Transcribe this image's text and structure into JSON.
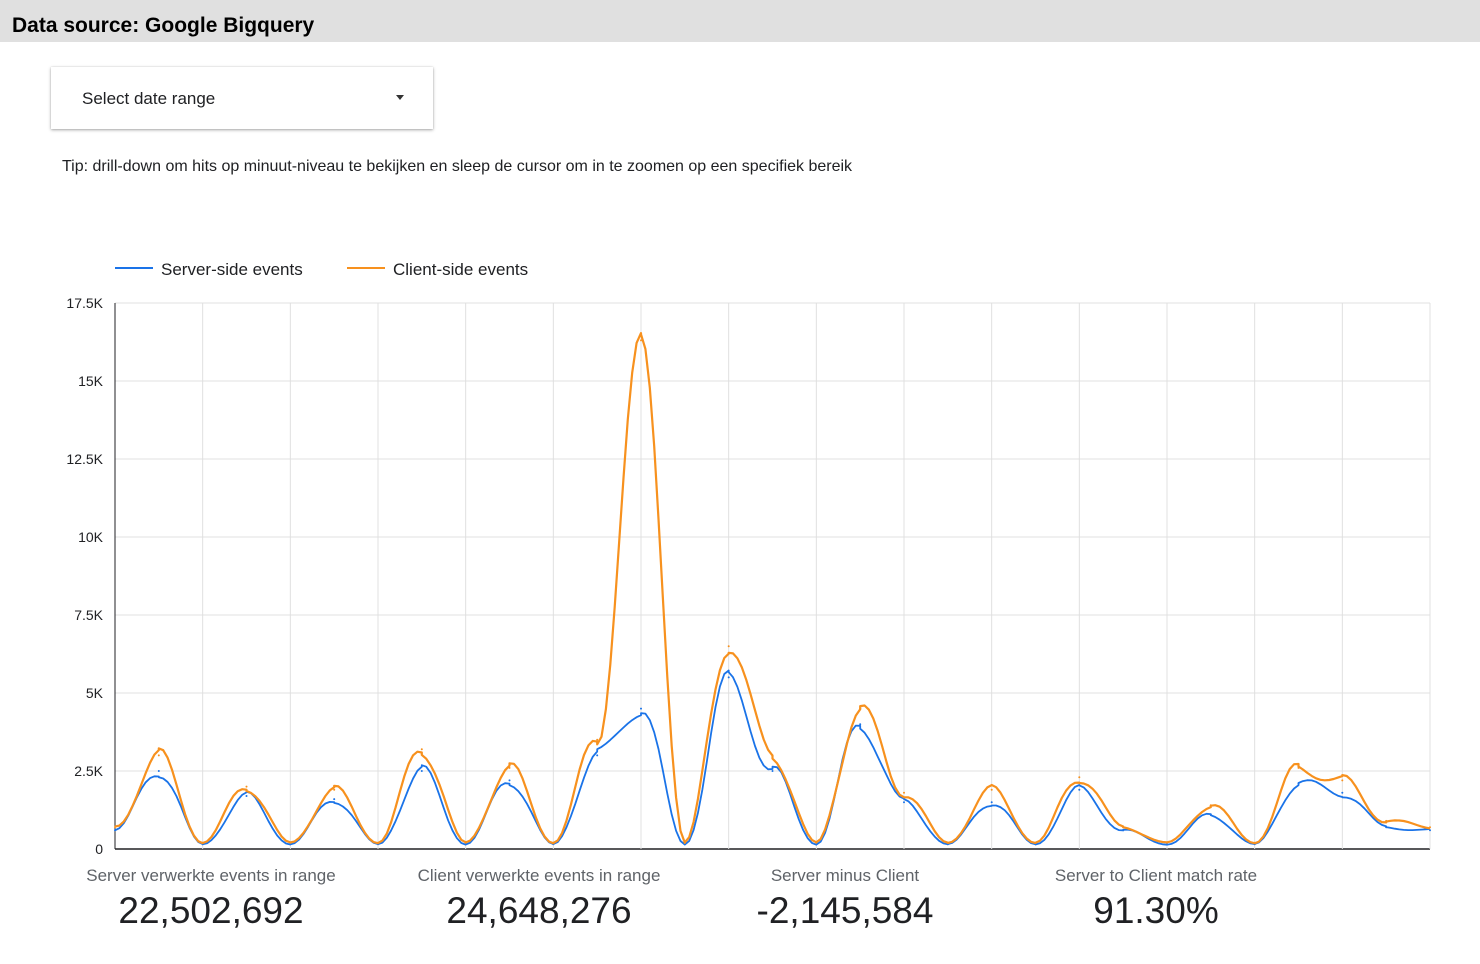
{
  "header": {
    "title": "Data source: Google Bigquery"
  },
  "date_control": {
    "label": "Select date range"
  },
  "tip": "Tip: drill-down om hits op minuut-niveau te bekijken en sleep de cursor om in te zoomen op een specifiek bereik",
  "chart_data": {
    "type": "line",
    "ylim": [
      0,
      17500
    ],
    "y_ticks": [
      {
        "value": 0,
        "label": "0"
      },
      {
        "value": 2500,
        "label": "2.5K"
      },
      {
        "value": 5000,
        "label": "5K"
      },
      {
        "value": 7500,
        "label": "7.5K"
      },
      {
        "value": 10000,
        "label": "10K"
      },
      {
        "value": 12500,
        "label": "12.5K"
      },
      {
        "value": 15000,
        "label": "15K"
      },
      {
        "value": 17500,
        "label": "17.5K"
      }
    ],
    "x_label": "",
    "y_label": "",
    "grid": true,
    "legend_position": "top-left",
    "x_day_index": [
      0,
      0.5,
      1,
      1.5,
      2,
      2.5,
      3,
      3.5,
      4,
      4.5,
      5,
      5.5,
      6,
      6.5,
      7,
      7.5,
      8,
      8.5,
      9,
      9.5,
      10,
      10.5,
      11,
      11.5,
      12,
      12.5,
      13,
      13.5,
      14,
      14.5,
      15
    ],
    "series": [
      {
        "name": "Server-side events",
        "color": "#1a73e8",
        "values": [
          600,
          2500,
          150,
          1700,
          150,
          1600,
          150,
          2500,
          150,
          2200,
          150,
          3000,
          4500,
          150,
          5500,
          2500,
          150,
          4000,
          1500,
          150,
          1500,
          150,
          1900,
          600,
          150,
          1100,
          150,
          2100,
          1800,
          700,
          600
        ]
      },
      {
        "name": "Client-side events",
        "color": "#f7911e",
        "values": [
          700,
          3000,
          200,
          2000,
          200,
          1900,
          200,
          3200,
          200,
          2600,
          200,
          3500,
          16300,
          200,
          6500,
          3000,
          200,
          4500,
          1800,
          200,
          1900,
          200,
          2300,
          700,
          200,
          1400,
          200,
          2600,
          2200,
          900,
          700
        ]
      }
    ]
  },
  "scorecards": [
    {
      "label": "Server verwerkte events in range",
      "value": "22,502,692"
    },
    {
      "label": "Client verwerkte events in range",
      "value": "24,648,276"
    },
    {
      "label": "Server minus Client",
      "value": "-2,145,584"
    },
    {
      "label": "Server to Client match rate",
      "value": "91.30%"
    }
  ]
}
